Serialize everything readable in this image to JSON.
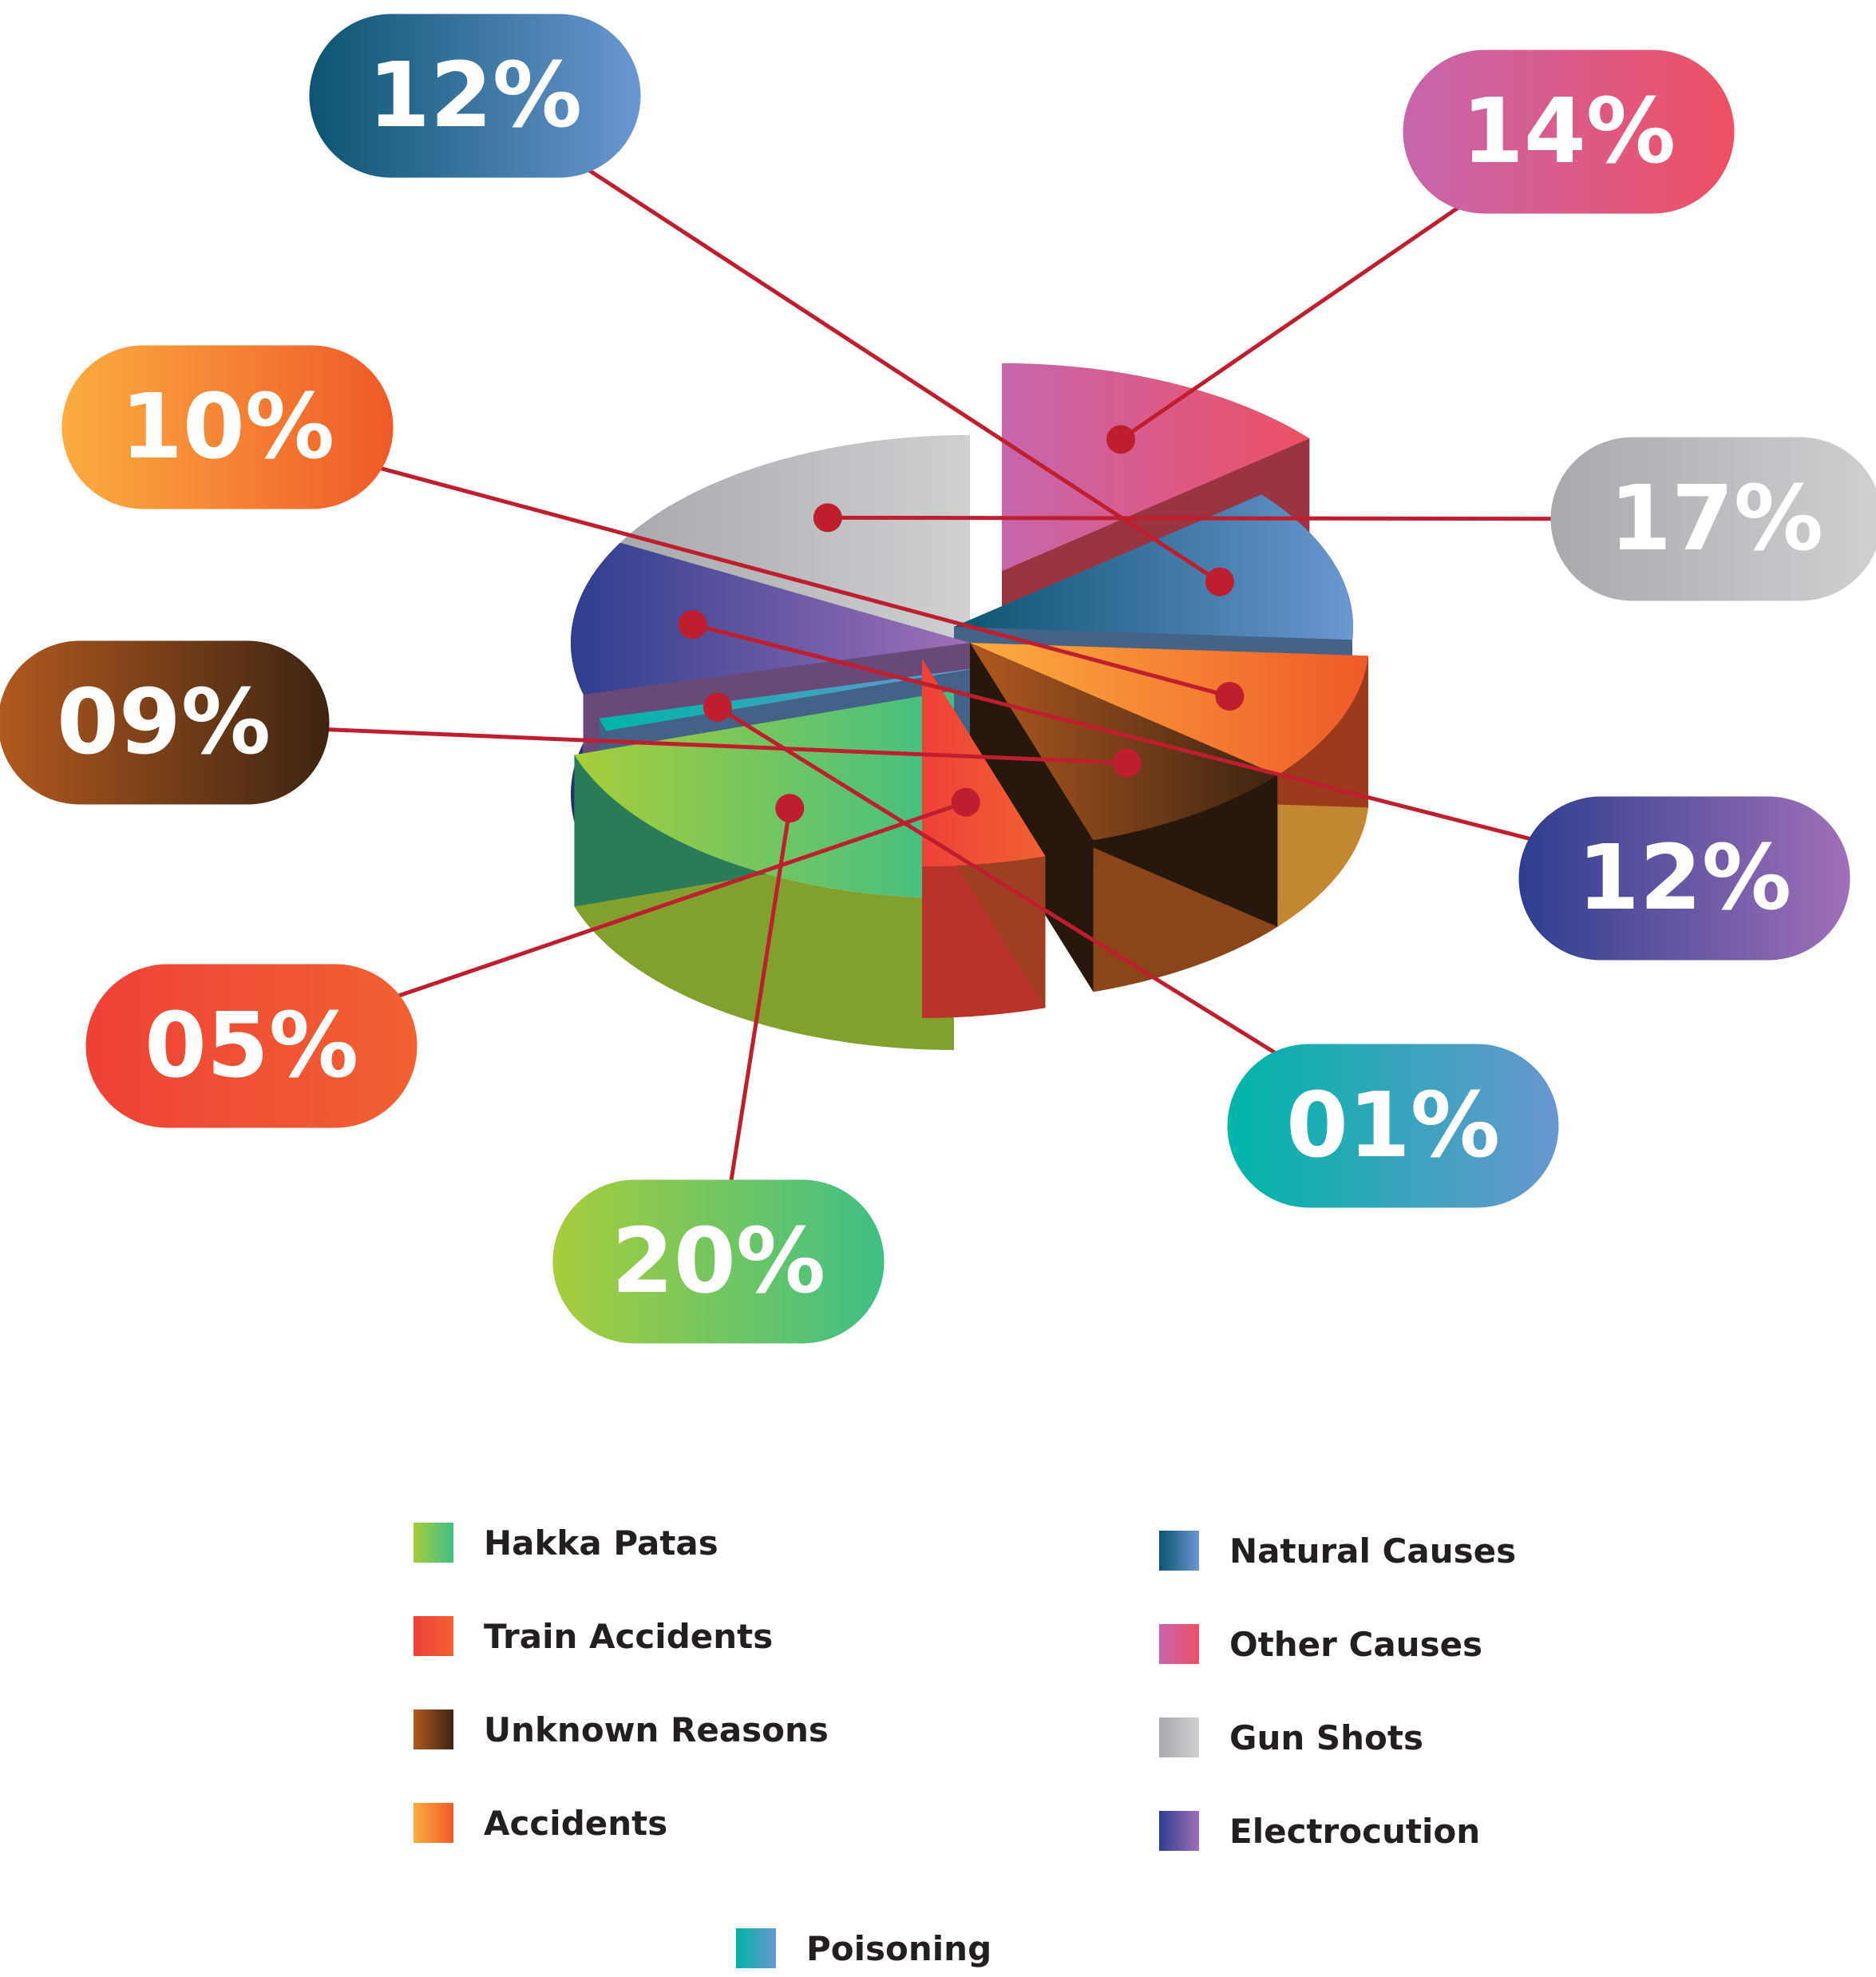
{
  "chart_data": {
    "type": "pie",
    "slices": [
      {
        "label": "Hakka Patas",
        "value": 20,
        "value_label": "20%",
        "color_a": "#a7cd3a",
        "color_b": "#3fbf86"
      },
      {
        "label": "Poisoning",
        "value": 1,
        "value_label": "01%",
        "color_a": "#00b5a8",
        "color_b": "#6996cf"
      },
      {
        "label": "Electrocution",
        "value": 12,
        "value_label": "12%",
        "color_a": "#2d3e8f",
        "color_b": "#a070b8"
      },
      {
        "label": "Gun Shots",
        "value": 17,
        "value_label": "17%",
        "color_a": "#a7a9ac",
        "color_b": "#cfd0d2"
      },
      {
        "label": "Other Causes",
        "value": 14,
        "value_label": "14%",
        "color_a": "#c666ad",
        "color_b": "#ee5064"
      },
      {
        "label": "Natural Causes",
        "value": 12,
        "value_label": "12%",
        "color_a": "#0c5471",
        "color_b": "#6a97d0"
      },
      {
        "label": "Accidents",
        "value": 10,
        "value_label": "10%",
        "color_a": "#fbad3f",
        "color_b": "#ef5a29"
      },
      {
        "label": "Unknown Reasons",
        "value": 9,
        "value_label": "09%",
        "color_a": "#b1591f",
        "color_b": "#3d2412"
      },
      {
        "label": "Train Accidents",
        "value": 5,
        "value_label": "05%",
        "color_a": "#ee4137",
        "color_b": "#f16132"
      }
    ],
    "legend": {
      "left": [
        "Hakka Patas",
        "Train Accidents",
        "Unknown Reasons",
        "Accidents"
      ],
      "right": [
        "Natural Causes",
        "Other Causes",
        "Gun Shots",
        "Electrocution"
      ],
      "bottom": [
        "Poisoning"
      ]
    },
    "legend_placement": "bottom",
    "title": "",
    "style": "3d-exploded-pie"
  },
  "colors": {
    "connector": "#be1e2d",
    "label_text": "#ffffff",
    "legend_text": "#231f20"
  }
}
